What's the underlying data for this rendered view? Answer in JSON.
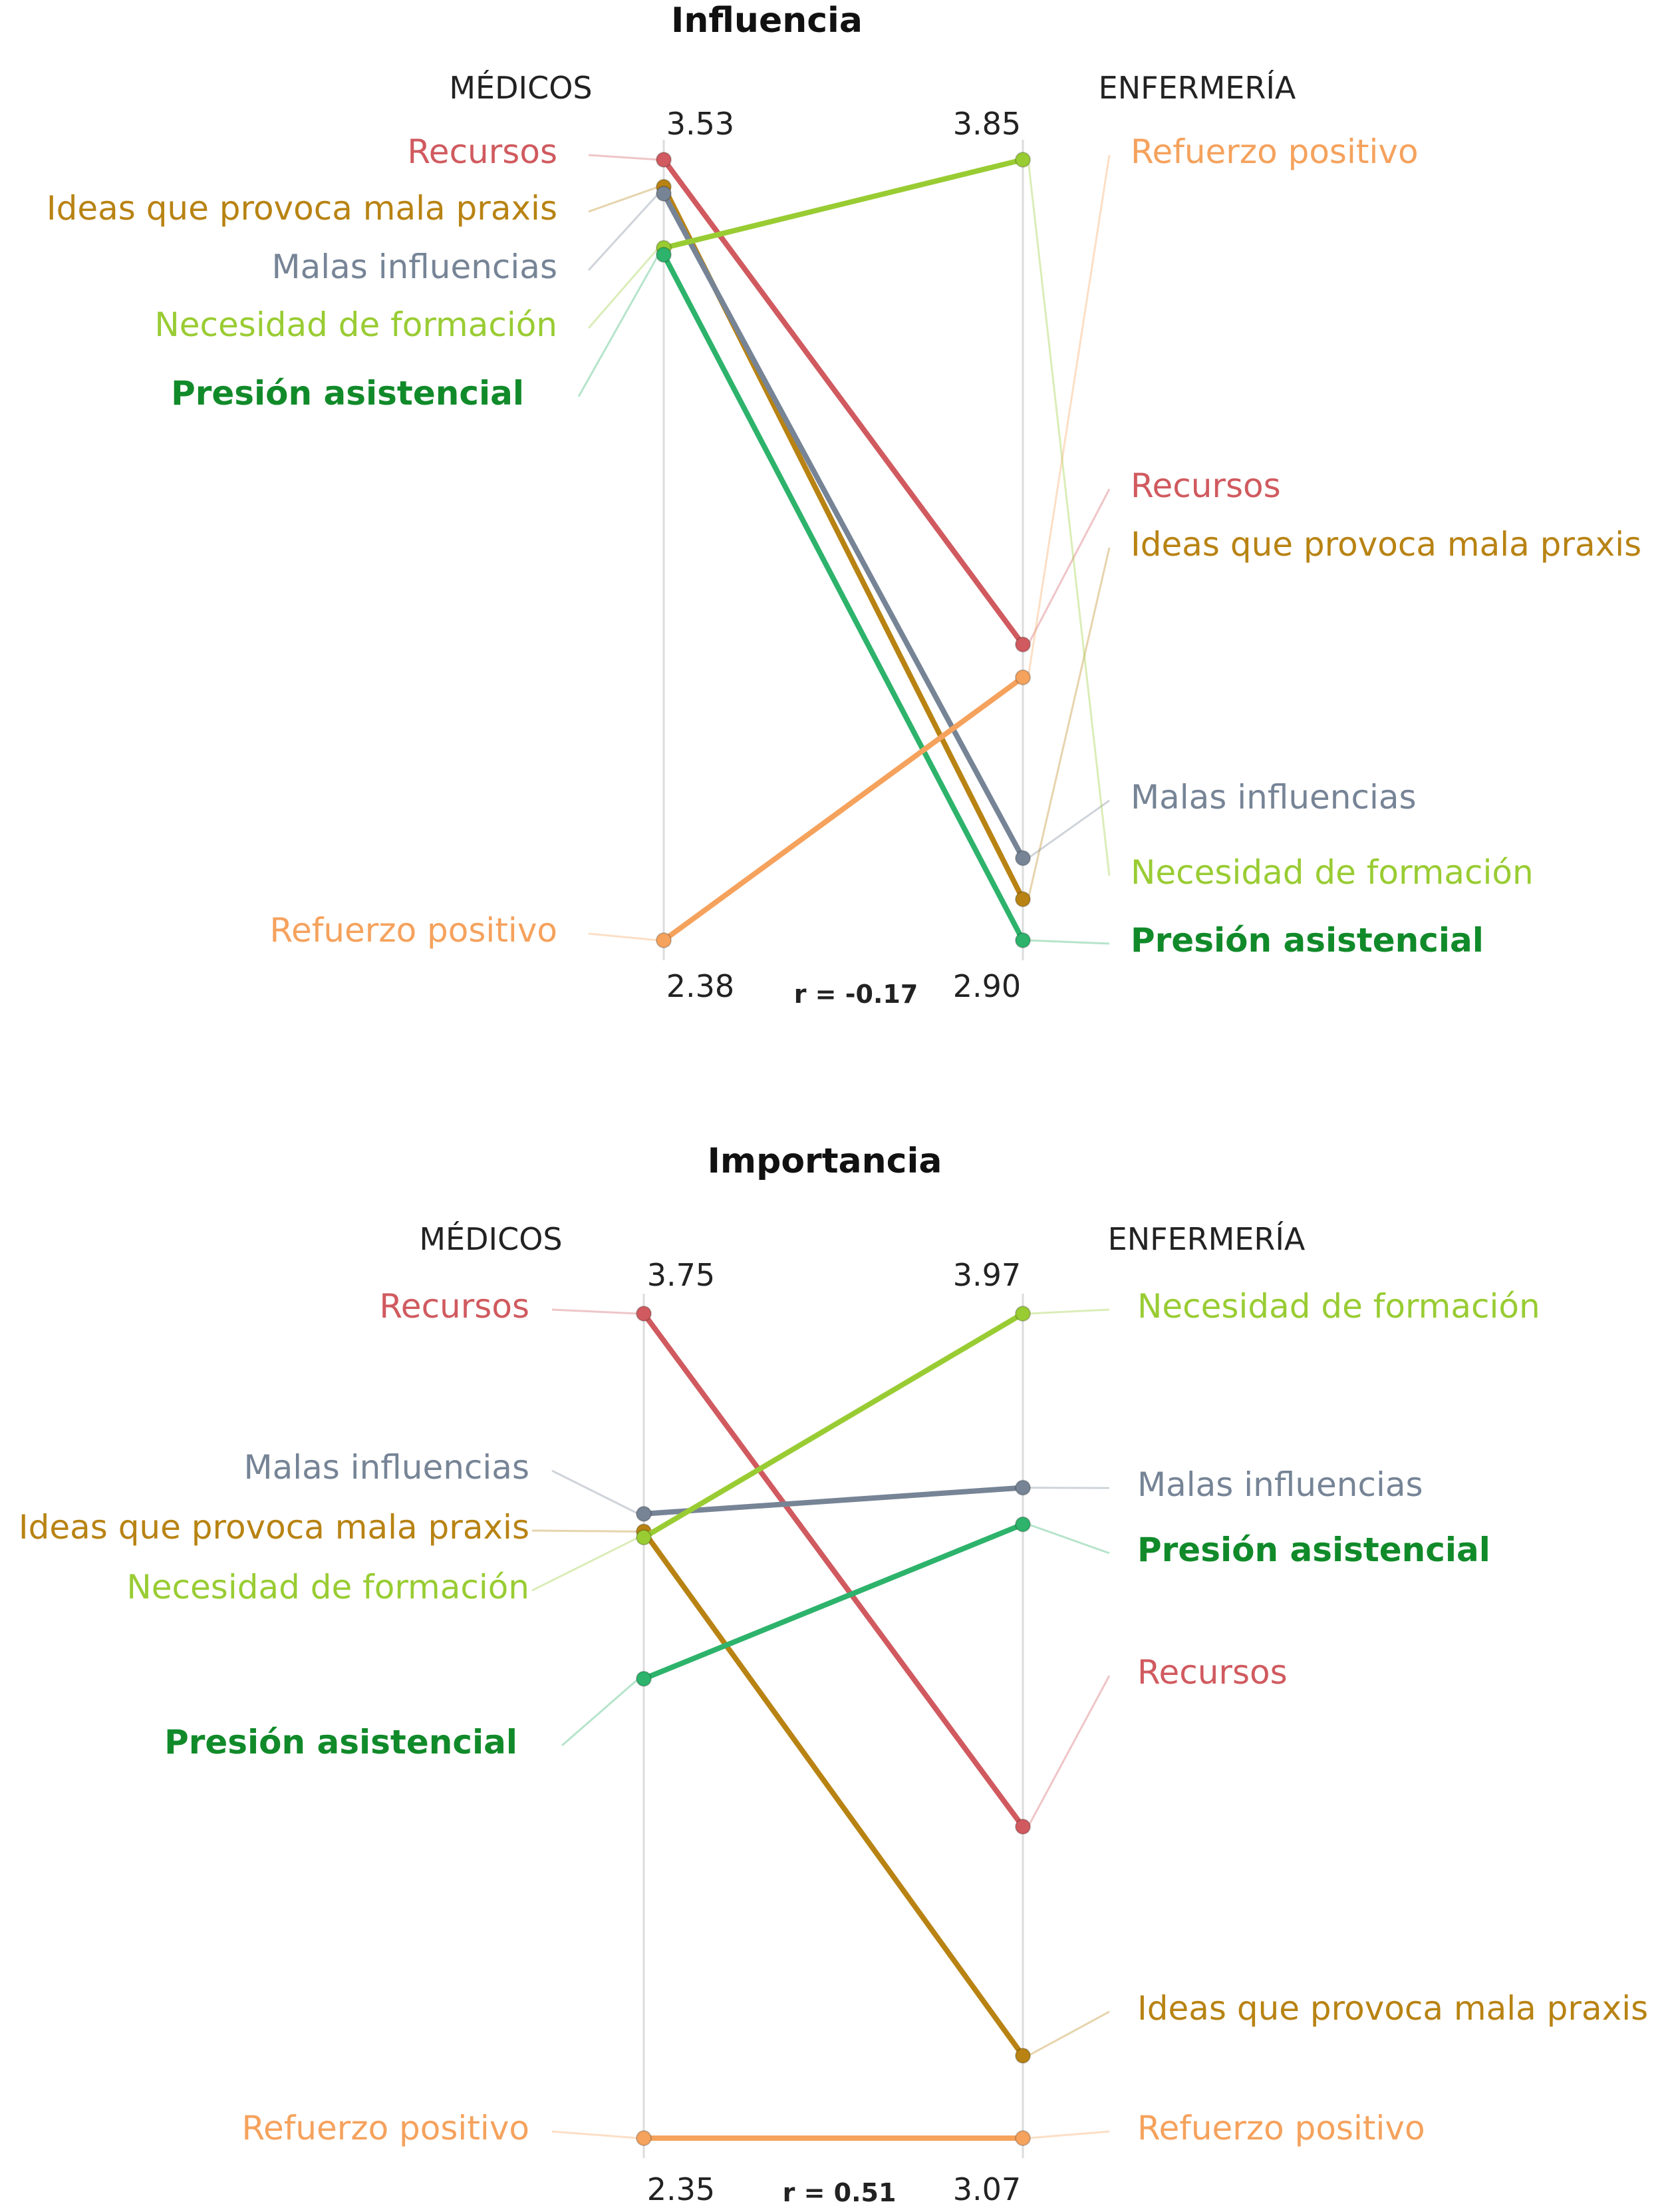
{
  "chart_data": [
    {
      "type": "slope",
      "title": "Influencia",
      "groups": [
        "MÉDICOS",
        "ENFERMERÍA"
      ],
      "axis_labels": {
        "left_top": "3.53",
        "left_bottom": "2.38",
        "right_top": "3.85",
        "right_bottom": "2.90"
      },
      "correlation": "r = -0.17",
      "series": [
        {
          "name": "Recursos",
          "color": "#d05a5f",
          "bold": false,
          "values": [
            3.53,
            3.26
          ]
        },
        {
          "name": "Ideas que provoca mala praxis",
          "color": "#b88313",
          "bold": false,
          "values": [
            3.49,
            2.95
          ]
        },
        {
          "name": "Malas influencias",
          "color": "#768496",
          "bold": false,
          "values": [
            3.48,
            3.0
          ]
        },
        {
          "name": "Necesidad de formación",
          "color": "#99cc33",
          "bold": false,
          "values": [
            3.4,
            3.85
          ]
        },
        {
          "name": "Presión asistencial",
          "color": "#2db36b",
          "label_color": "#118a2a",
          "bold": true,
          "values": [
            3.39,
            2.9
          ]
        },
        {
          "name": "Refuerzo positivo",
          "color": "#f5a25d",
          "bold": false,
          "values": [
            2.38,
            3.22
          ]
        }
      ]
    },
    {
      "type": "slope",
      "title": "Importancia",
      "groups": [
        "MÉDICOS",
        "ENFERMERÍA"
      ],
      "axis_labels": {
        "left_top": "3.75",
        "left_bottom": "2.35",
        "right_top": "3.97",
        "right_bottom": "3.07"
      },
      "correlation": "r = 0.51",
      "series": [
        {
          "name": "Recursos",
          "color": "#d05a5f",
          "bold": false,
          "values": [
            3.75,
            3.41
          ]
        },
        {
          "name": "Malas influencias",
          "color": "#768496",
          "bold": false,
          "values": [
            3.41,
            3.78
          ]
        },
        {
          "name": "Ideas que provoca mala praxis",
          "color": "#b88313",
          "bold": false,
          "values": [
            3.38,
            3.16
          ]
        },
        {
          "name": "Necesidad de formación",
          "color": "#99cc33",
          "bold": false,
          "values": [
            3.37,
            3.97
          ]
        },
        {
          "name": "Presión asistencial",
          "color": "#2db36b",
          "label_color": "#118a2a",
          "bold": true,
          "values": [
            3.13,
            3.74
          ]
        },
        {
          "name": "Refuerzo positivo",
          "color": "#f5a25d",
          "bold": false,
          "values": [
            2.35,
            3.07
          ]
        }
      ]
    }
  ]
}
